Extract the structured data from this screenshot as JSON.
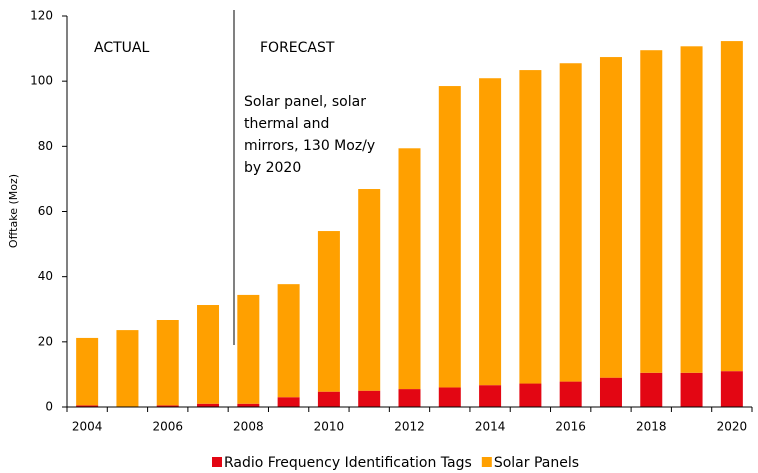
{
  "chart_data": {
    "type": "stacked_bar",
    "ylabel": "Offtake (Moz)",
    "annotations": {
      "actual": "ACTUAL",
      "forecast": "FORECAST",
      "note": [
        "Solar panel, solar",
        "thermal and",
        "mirrors, 130 Moz/y",
        "by 2020"
      ]
    },
    "categories": [
      "2004",
      null,
      "2006",
      null,
      "2008",
      null,
      "2010",
      null,
      "2012",
      null,
      "2014",
      null,
      "2016",
      null,
      "2018",
      null,
      "2020"
    ],
    "series": [
      {
        "name": "Radio Frequency Identification Tags",
        "color": "#e30613",
        "values": [
          0.5,
          0,
          0.5,
          1,
          1,
          3,
          4.7,
          5,
          5.5,
          6,
          6.7,
          7.2,
          7.8,
          9,
          10.5,
          10.5,
          11
        ]
      },
      {
        "name": "Solar Panels",
        "color": "#ffa000",
        "values": [
          20.7,
          23.6,
          26.2,
          30.3,
          33.4,
          34.7,
          49.3,
          61.9,
          73.9,
          92.5,
          94.2,
          96.2,
          97.7,
          98.4,
          99,
          100.2,
          101.3
        ]
      }
    ],
    "ylim": [
      0,
      120
    ],
    "yticks": [
      0,
      20,
      40,
      60,
      80,
      100,
      120
    ],
    "grid": false,
    "legend": "bottom"
  }
}
